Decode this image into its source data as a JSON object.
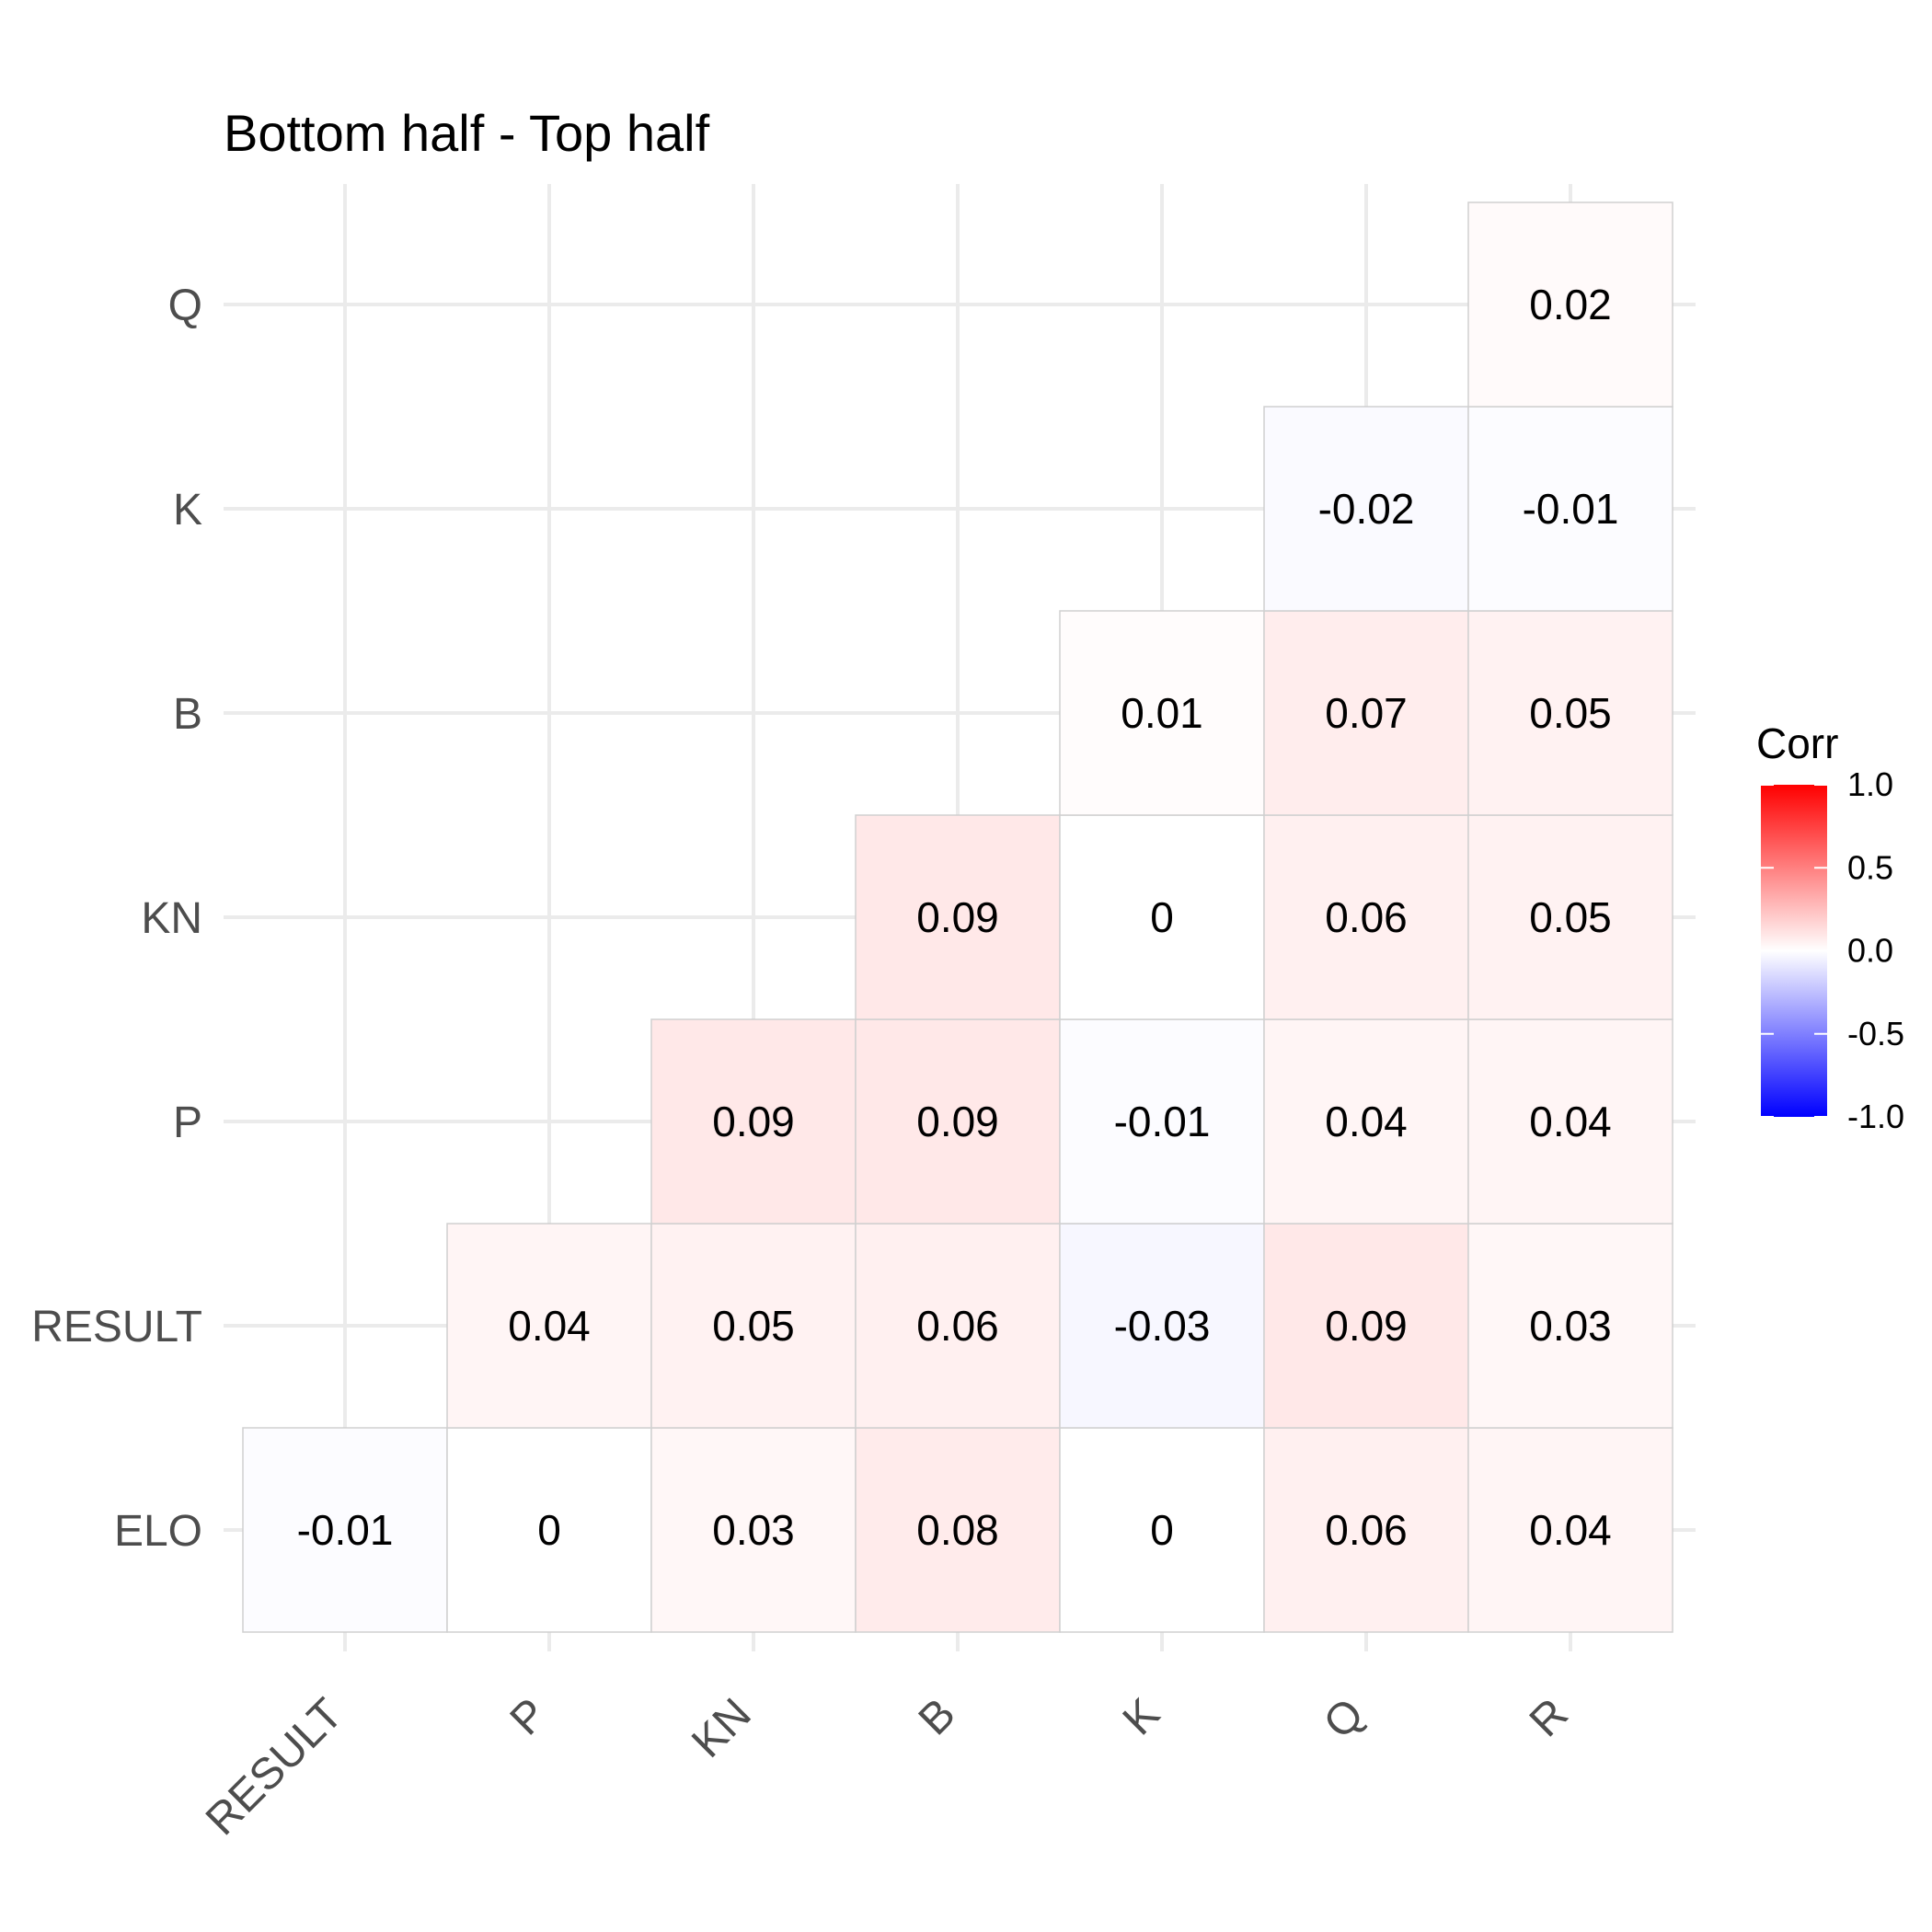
{
  "chart_data": {
    "type": "heatmap",
    "title": "Bottom half - Top half",
    "x_categories": [
      "RESULT",
      "P",
      "KN",
      "B",
      "K",
      "Q",
      "R"
    ],
    "y_categories": [
      "ELO",
      "RESULT",
      "P",
      "KN",
      "B",
      "K",
      "Q"
    ],
    "cells": [
      {
        "x": "RESULT",
        "y": "ELO",
        "value": -0.01
      },
      {
        "x": "P",
        "y": "ELO",
        "value": 0
      },
      {
        "x": "KN",
        "y": "ELO",
        "value": 0.03
      },
      {
        "x": "B",
        "y": "ELO",
        "value": 0.08
      },
      {
        "x": "K",
        "y": "ELO",
        "value": 0
      },
      {
        "x": "Q",
        "y": "ELO",
        "value": 0.06
      },
      {
        "x": "R",
        "y": "ELO",
        "value": 0.04
      },
      {
        "x": "P",
        "y": "RESULT",
        "value": 0.04
      },
      {
        "x": "KN",
        "y": "RESULT",
        "value": 0.05
      },
      {
        "x": "B",
        "y": "RESULT",
        "value": 0.06
      },
      {
        "x": "K",
        "y": "RESULT",
        "value": -0.03
      },
      {
        "x": "Q",
        "y": "RESULT",
        "value": 0.09
      },
      {
        "x": "R",
        "y": "RESULT",
        "value": 0.03
      },
      {
        "x": "KN",
        "y": "P",
        "value": 0.09
      },
      {
        "x": "B",
        "y": "P",
        "value": 0.09
      },
      {
        "x": "K",
        "y": "P",
        "value": -0.01
      },
      {
        "x": "Q",
        "y": "P",
        "value": 0.04
      },
      {
        "x": "R",
        "y": "P",
        "value": 0.04
      },
      {
        "x": "B",
        "y": "KN",
        "value": 0.09
      },
      {
        "x": "K",
        "y": "KN",
        "value": 0
      },
      {
        "x": "Q",
        "y": "KN",
        "value": 0.06
      },
      {
        "x": "R",
        "y": "KN",
        "value": 0.05
      },
      {
        "x": "K",
        "y": "B",
        "value": 0.01
      },
      {
        "x": "Q",
        "y": "B",
        "value": 0.07
      },
      {
        "x": "R",
        "y": "B",
        "value": 0.05
      },
      {
        "x": "Q",
        "y": "K",
        "value": -0.02
      },
      {
        "x": "R",
        "y": "K",
        "value": -0.01
      },
      {
        "x": "R",
        "y": "Q",
        "value": 0.02
      }
    ],
    "legend": {
      "title": "Corr",
      "range": [
        -1.0,
        1.0
      ],
      "ticks": [
        "1.0",
        "0.5",
        "0.0",
        "-0.5",
        "-1.0"
      ],
      "colors": {
        "low": "#0000ff",
        "mid": "#ffffff",
        "high": "#ff0000"
      },
      "placement": "right"
    },
    "grid": true
  }
}
